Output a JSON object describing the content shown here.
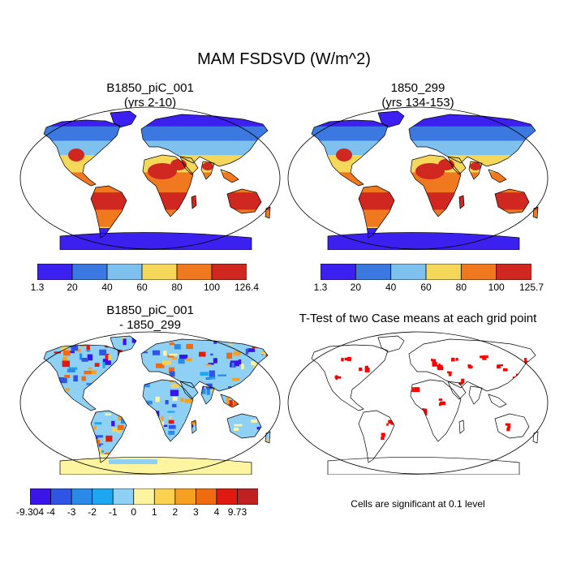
{
  "title": "MAM FSDSVD (W/m^2)",
  "panels": [
    {
      "id": "case1",
      "title_lines": [
        "B1850_piC_001",
        "(yrs 2-10)"
      ],
      "colorbar": {
        "labels": [
          "1.3",
          "20",
          "40",
          "60",
          "80",
          "100",
          "126.4"
        ],
        "colors": [
          "#3c20f0",
          "#3b78e0",
          "#7ec0ee",
          "#f5d85a",
          "#f0781e",
          "#d02820"
        ]
      }
    },
    {
      "id": "case2",
      "title_lines": [
        "1850_299",
        "(yrs 134-153)"
      ],
      "colorbar": {
        "labels": [
          "1.3",
          "20",
          "40",
          "60",
          "80",
          "100",
          "125.7"
        ],
        "colors": [
          "#3c20f0",
          "#3b78e0",
          "#7ec0ee",
          "#f5d85a",
          "#f0781e",
          "#d02820"
        ]
      }
    },
    {
      "id": "diff",
      "title_lines": [
        "B1850_piC_001",
        "- 1850_299"
      ],
      "colorbar": {
        "labels": [
          "-9.304",
          "-4",
          "-3",
          "-2",
          "-1",
          "0",
          "1",
          "2",
          "3",
          "4",
          "9.73"
        ],
        "colors": [
          "#3a14e8",
          "#2f55e6",
          "#2a8ae8",
          "#1ea6f0",
          "#8fd0f5",
          "#fff5a0",
          "#fad250",
          "#f5a020",
          "#f06a10",
          "#e01a10",
          "#c02020"
        ]
      }
    },
    {
      "id": "ttest",
      "title_lines": [
        "T-Test of two Case means at each grid point"
      ],
      "note": "Cells are significant at 0.1 level",
      "significance_color": "#ff0000"
    }
  ]
}
